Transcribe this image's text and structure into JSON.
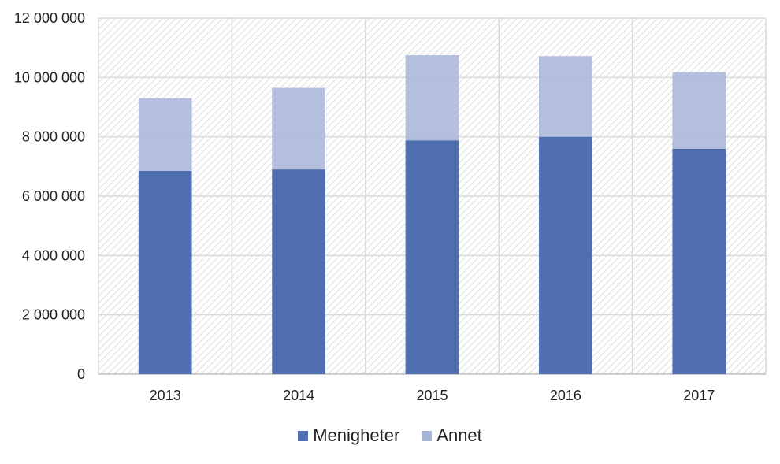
{
  "chart_data": {
    "type": "bar",
    "stacked": true,
    "categories": [
      "2013",
      "2014",
      "2015",
      "2016",
      "2017"
    ],
    "series": [
      {
        "name": "Menigheter",
        "color": "#4f6fb0",
        "values": [
          6850000,
          6900000,
          7880000,
          8000000,
          7600000
        ]
      },
      {
        "name": "Annet",
        "color": "#a7b5d8",
        "values": [
          2450000,
          2750000,
          2870000,
          2720000,
          2580000
        ]
      }
    ],
    "yticks": [
      "0",
      "2 000 000",
      "4 000 000",
      "6 000 000",
      "8 000 000",
      "10 000 000",
      "12 000 000"
    ],
    "ylim": [
      0,
      12000000
    ],
    "grid": true,
    "background_pattern": "diagonal hatch",
    "legend_position": "bottom"
  }
}
